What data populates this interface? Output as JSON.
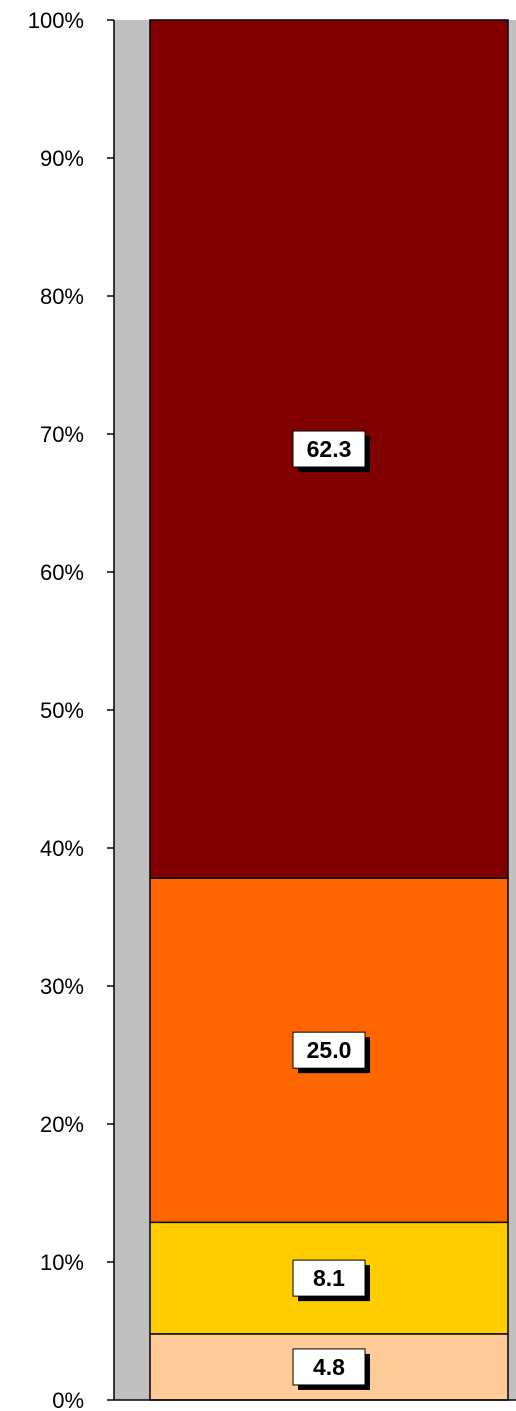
{
  "chart_data": {
    "type": "bar",
    "stacked": true,
    "normalized": true,
    "categories": [
      ""
    ],
    "series": [
      {
        "values": [
          4.8
        ],
        "color": "#ffcc99"
      },
      {
        "values": [
          8.1
        ],
        "color": "#ffcc00"
      },
      {
        "values": [
          25.0
        ],
        "color": "#ff6600"
      },
      {
        "values": [
          62.3
        ],
        "color": "#800000"
      }
    ],
    "data_labels": [
      "4.8",
      "8.1",
      "25.0",
      "62.3"
    ],
    "y_ticks": [
      "0%",
      "10%",
      "20%",
      "30%",
      "40%",
      "50%",
      "60%",
      "70%",
      "80%",
      "90%",
      "100%"
    ],
    "ylim": [
      0,
      100
    ],
    "grid": false,
    "legend": "none",
    "plot_background": "#c0c0c0",
    "title": "",
    "xlabel": "",
    "ylabel": ""
  }
}
